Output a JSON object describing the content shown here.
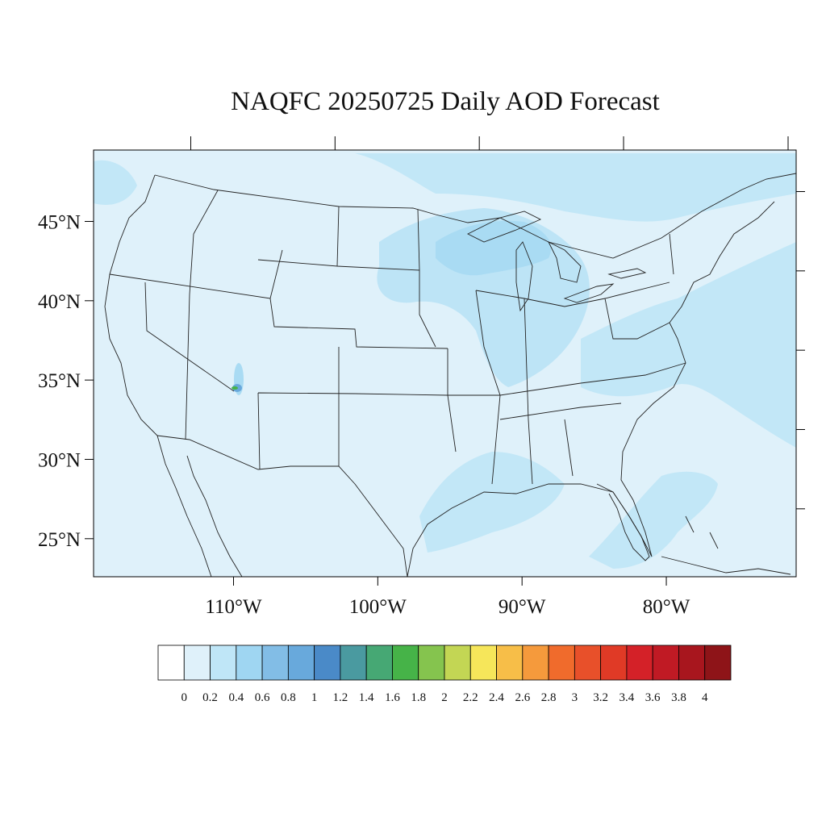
{
  "title": "NAQFC 20250725 Daily AOD Forecast",
  "map": {
    "lon_range": [
      -119.7,
      -71.0
    ],
    "lat_range": [
      22.6,
      49.5
    ],
    "lat_ticks": [
      {
        "value": 45,
        "label": "45°N"
      },
      {
        "value": 40,
        "label": "40°N"
      },
      {
        "value": 35,
        "label": "35°N"
      },
      {
        "value": 30,
        "label": "30°N"
      },
      {
        "value": 25,
        "label": "25°N"
      }
    ],
    "lon_ticks": [
      {
        "value": -110,
        "label": "110°W"
      },
      {
        "value": -100,
        "label": "100°W"
      },
      {
        "value": -90,
        "label": "90°W"
      },
      {
        "value": -80,
        "label": "80°W"
      }
    ],
    "background_color": "#dff1fa",
    "boundary_color": "#222222"
  },
  "colorbar": {
    "colors": [
      "#ffffff",
      "#dff1fa",
      "#bfe6f7",
      "#9fd6f2",
      "#82bde6",
      "#68a9dc",
      "#4a8ac8",
      "#4a9aa0",
      "#46a874",
      "#46b348",
      "#85c44e",
      "#c3d654",
      "#f6e65a",
      "#f7be48",
      "#f59a3c",
      "#f06b2c",
      "#e8502a",
      "#e03a26",
      "#d42128",
      "#c01a24",
      "#a8161e",
      "#8e1418"
    ],
    "labels": [
      "0",
      "0.2",
      "0.4",
      "0.6",
      "0.8",
      "1",
      "1.2",
      "1.4",
      "1.6",
      "1.8",
      "2",
      "2.2",
      "2.4",
      "2.6",
      "2.8",
      "3",
      "3.2",
      "3.4",
      "3.6",
      "3.8",
      "4"
    ]
  }
}
